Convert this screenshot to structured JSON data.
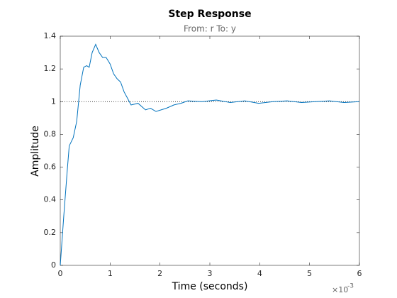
{
  "chart_data": {
    "type": "line",
    "title": "Step Response",
    "subtitle": "From: r  To: y",
    "xlabel": "Time (seconds)",
    "ylabel": "Amplitude",
    "x_multiplier": {
      "base": "×10",
      "exponent": "-3"
    },
    "x": [
      0,
      0.07,
      0.14,
      0.18,
      0.26,
      0.33,
      0.4,
      0.47,
      0.53,
      0.58,
      0.64,
      0.71,
      0.78,
      0.85,
      0.92,
      1.0,
      1.07,
      1.14,
      1.21,
      1.28,
      1.35,
      1.42,
      1.56,
      1.71,
      1.81,
      1.92,
      2.13,
      2.28,
      2.42,
      2.56,
      2.84,
      3.13,
      3.41,
      3.7,
      3.98,
      4.27,
      4.55,
      4.84,
      5.12,
      5.4,
      5.69,
      6.0
    ],
    "values": [
      0,
      0.3,
      0.58,
      0.73,
      0.78,
      0.88,
      1.1,
      1.21,
      1.22,
      1.21,
      1.3,
      1.35,
      1.3,
      1.27,
      1.27,
      1.23,
      1.17,
      1.14,
      1.12,
      1.06,
      1.02,
      0.98,
      0.99,
      0.95,
      0.96,
      0.94,
      0.96,
      0.98,
      0.99,
      1.005,
      1.0,
      1.01,
      0.995,
      1.005,
      0.99,
      1.0,
      1.005,
      0.995,
      1.0,
      1.005,
      0.995,
      1.0
    ],
    "color": "#0072bd",
    "reference_line": 1,
    "xlim": [
      0,
      6
    ],
    "xticks": [
      0,
      1,
      2,
      3,
      4,
      5,
      6
    ],
    "ylim": [
      0,
      1.4
    ],
    "yticks": [
      0,
      0.2,
      0.4,
      0.6,
      0.8,
      1,
      1.2,
      1.4
    ]
  }
}
